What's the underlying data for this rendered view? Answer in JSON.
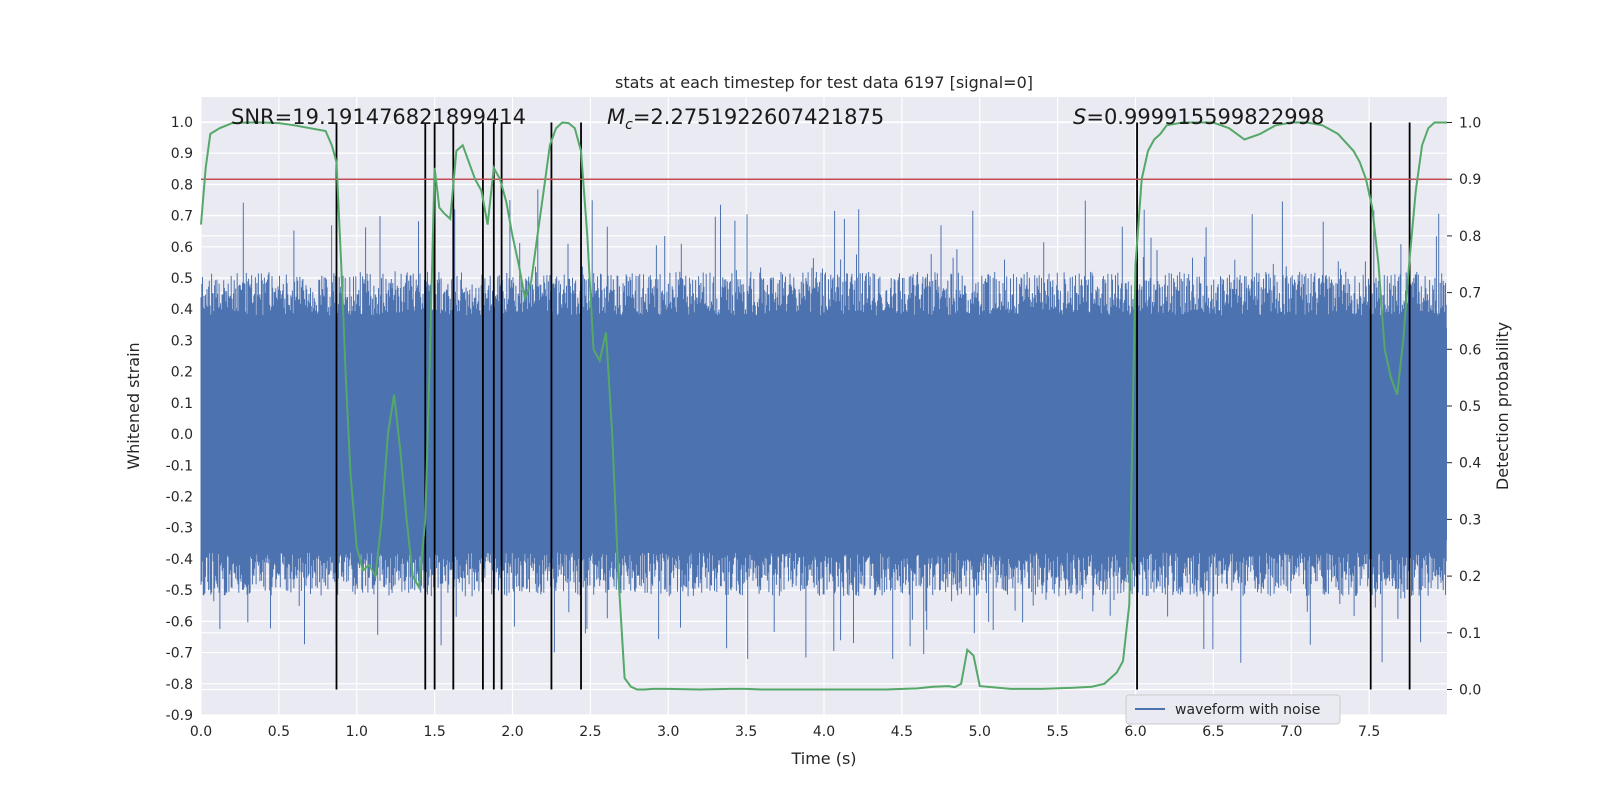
{
  "chart_data": {
    "type": "line",
    "title": "stats at each timestep for test data 6197 [signal=0]",
    "xlabel": "Time (s)",
    "ylabel": "Whitened strain",
    "y2label": "Detection probability",
    "xlim": [
      0.0,
      8.0
    ],
    "ylim": [
      -0.9,
      1.08
    ],
    "y2lim": [
      -0.045,
      1.045
    ],
    "xticks": [
      "0.0",
      "0.5",
      "1.0",
      "1.5",
      "2.0",
      "2.5",
      "3.0",
      "3.5",
      "4.0",
      "4.5",
      "5.0",
      "5.5",
      "6.0",
      "6.5",
      "7.0",
      "7.5"
    ],
    "yticks": [
      "-0.9",
      "-0.8",
      "-0.7",
      "-0.6",
      "-0.5",
      "-0.4",
      "-0.3",
      "-0.2",
      "-0.1",
      "0.0",
      "0.1",
      "0.2",
      "0.3",
      "0.4",
      "0.5",
      "0.6",
      "0.7",
      "0.8",
      "0.9",
      "1.0"
    ],
    "y2ticks": [
      "0.0",
      "0.1",
      "0.2",
      "0.3",
      "0.4",
      "0.5",
      "0.6",
      "0.7",
      "0.8",
      "0.9",
      "1.0"
    ],
    "annotations": {
      "snr": "SNR=19.191476821899414",
      "mc": "=2.2751922607421875",
      "mc_symbol": "M",
      "mc_sub": "c",
      "s": "=0.999915599822998",
      "s_symbol": "S"
    },
    "threshold_probability": 0.9,
    "trigger_lines_s": [
      0.87,
      1.44,
      1.5,
      1.62,
      1.81,
      1.88,
      1.93,
      2.25,
      2.44,
      6.01,
      7.51,
      7.76
    ],
    "detection_probability": {
      "x": [
        0.0,
        0.03,
        0.06,
        0.12,
        0.2,
        0.3,
        0.4,
        0.5,
        0.6,
        0.7,
        0.8,
        0.84,
        0.87,
        0.9,
        0.93,
        0.96,
        1.0,
        1.04,
        1.08,
        1.12,
        1.16,
        1.2,
        1.24,
        1.28,
        1.32,
        1.36,
        1.4,
        1.44,
        1.47,
        1.5,
        1.53,
        1.56,
        1.6,
        1.64,
        1.68,
        1.72,
        1.76,
        1.8,
        1.84,
        1.88,
        1.92,
        1.96,
        2.0,
        2.04,
        2.08,
        2.12,
        2.16,
        2.2,
        2.24,
        2.28,
        2.32,
        2.36,
        2.4,
        2.44,
        2.48,
        2.52,
        2.56,
        2.6,
        2.64,
        2.68,
        2.72,
        2.76,
        2.8,
        2.85,
        2.9,
        3.0,
        3.2,
        3.4,
        3.5,
        3.6,
        3.8,
        4.0,
        4.2,
        4.4,
        4.6,
        4.7,
        4.8,
        4.84,
        4.88,
        4.92,
        4.96,
        5.0,
        5.2,
        5.4,
        5.6,
        5.72,
        5.8,
        5.88,
        5.92,
        5.96,
        6.0,
        6.04,
        6.08,
        6.12,
        6.16,
        6.2,
        6.3,
        6.4,
        6.5,
        6.6,
        6.7,
        6.8,
        6.9,
        7.0,
        7.1,
        7.2,
        7.3,
        7.4,
        7.44,
        7.48,
        7.52,
        7.56,
        7.6,
        7.64,
        7.68,
        7.72,
        7.76,
        7.8,
        7.84,
        7.88,
        7.92,
        7.96,
        8.0
      ],
      "y": [
        0.82,
        0.92,
        0.98,
        0.99,
        0.999,
        1.0,
        1.0,
        0.999,
        0.995,
        0.99,
        0.985,
        0.96,
        0.93,
        0.75,
        0.55,
        0.38,
        0.25,
        0.21,
        0.22,
        0.2,
        0.3,
        0.45,
        0.52,
        0.42,
        0.3,
        0.2,
        0.18,
        0.3,
        0.6,
        0.92,
        0.85,
        0.84,
        0.83,
        0.95,
        0.96,
        0.93,
        0.9,
        0.88,
        0.82,
        0.92,
        0.9,
        0.86,
        0.8,
        0.75,
        0.69,
        0.72,
        0.8,
        0.88,
        0.96,
        0.99,
        1.0,
        0.999,
        0.99,
        0.95,
        0.8,
        0.6,
        0.58,
        0.63,
        0.45,
        0.2,
        0.02,
        0.005,
        0.0,
        0.0,
        0.001,
        0.001,
        0.0,
        0.001,
        0.001,
        0.0,
        0.0,
        0.0,
        0.0,
        0.0,
        0.002,
        0.005,
        0.006,
        0.004,
        0.01,
        0.07,
        0.06,
        0.006,
        0.001,
        0.001,
        0.003,
        0.005,
        0.01,
        0.03,
        0.05,
        0.15,
        0.75,
        0.9,
        0.95,
        0.97,
        0.98,
        0.995,
        1.0,
        1.0,
        1.0,
        0.99,
        0.97,
        0.98,
        0.995,
        1.0,
        1.0,
        0.995,
        0.98,
        0.95,
        0.93,
        0.9,
        0.85,
        0.75,
        0.6,
        0.55,
        0.52,
        0.62,
        0.76,
        0.88,
        0.96,
        0.99,
        1.0,
        1.0,
        1.0
      ],
      "color": "#55a868"
    },
    "series": [
      {
        "name": "waveform with noise",
        "type": "waveform",
        "color": "#4c72b0"
      },
      {
        "name": "detection probability",
        "type": "line",
        "color": "#55a868"
      },
      {
        "name": "threshold",
        "type": "hline",
        "color": "#c44e52"
      }
    ],
    "legend": {
      "position": "bottom-right",
      "entries": [
        "waveform with noise"
      ]
    },
    "grid": true
  }
}
